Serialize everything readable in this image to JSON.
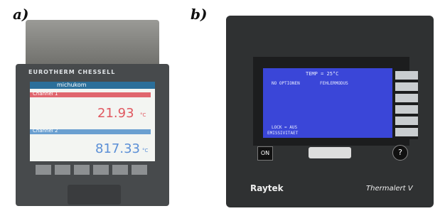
{
  "panels": [
    {
      "label": "a)",
      "device": {
        "brand": "EUROTHERM CHESSELL",
        "screen": {
          "header": "michukom",
          "channels": [
            {
              "name": "Channel 1",
              "reading": "21.93",
              "unit": "°C"
            },
            {
              "name": "Channel 2",
              "reading": "817.33",
              "unit": "°C"
            }
          ]
        }
      }
    },
    {
      "label": "b)",
      "device": {
        "screen": {
          "header": "TEMP = 25°C",
          "lines": [
            "NO OPTIONEN",
            "FEHLERMODUS",
            "LOCK = AUS",
            "EMISSIVITAET"
          ]
        },
        "buttons": [
          "ON",
          "?"
        ],
        "brand": "Raytek",
        "model": "Thermalert V"
      }
    }
  ]
}
